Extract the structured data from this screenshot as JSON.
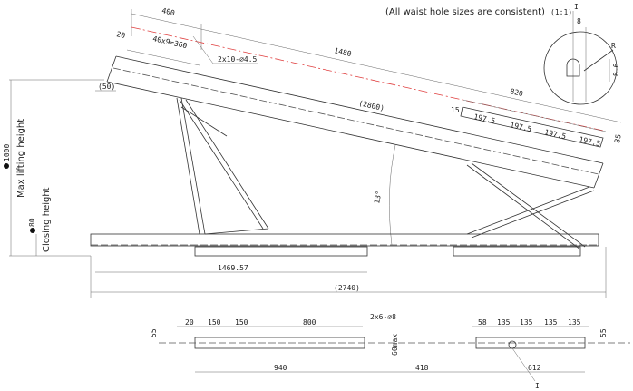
{
  "note": {
    "text": "(All waist hole sizes are consistent)",
    "scale": "(1:1)"
  },
  "detail": {
    "label": "I",
    "dims": [
      "8",
      "R",
      "8.6"
    ]
  },
  "side_view": {
    "labels": [
      "400",
      "20",
      "40x9=360",
      "2x10-∅4.5",
      "1480",
      "(50)",
      "(2800)",
      "820",
      "15",
      "197.5",
      "197.5",
      "197.5",
      "197.5",
      "35",
      "13°",
      "1000",
      "Max lifting height",
      "80",
      "Closing height",
      "1469.57",
      "(2740)"
    ]
  },
  "plan_view": {
    "labels": [
      "20",
      "150",
      "150",
      "800",
      "2x6-∅8",
      "55",
      "60max",
      "940",
      "418",
      "58",
      "135",
      "135",
      "135",
      "135",
      "612",
      "I",
      "55"
    ]
  }
}
